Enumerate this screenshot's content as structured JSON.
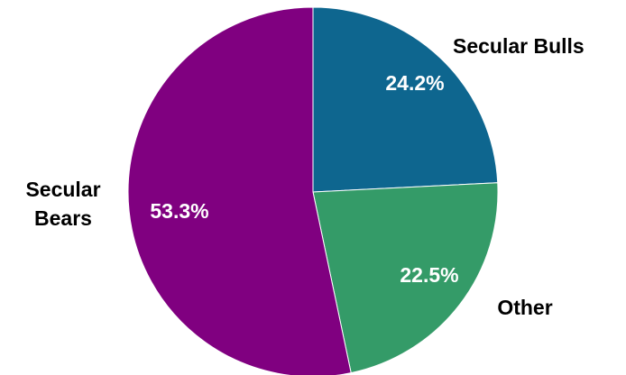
{
  "chart_data": {
    "type": "pie",
    "title": "",
    "slices": [
      {
        "label": "Secular Bulls",
        "label_lines": [
          "Secular Bulls"
        ],
        "value": 24.2,
        "value_label": "24.2%",
        "color": "#0e668f"
      },
      {
        "label": "Other",
        "label_lines": [
          "Other"
        ],
        "value": 22.5,
        "value_label": "22.5%",
        "color": "#349b68"
      },
      {
        "label": "Secular Bears",
        "label_lines": [
          "Secular",
          "Bears"
        ],
        "value": 53.3,
        "value_label": "53.3%",
        "color": "#800080"
      }
    ],
    "start_angle": "12 o'clock",
    "direction": "clockwise",
    "legend": "none"
  }
}
